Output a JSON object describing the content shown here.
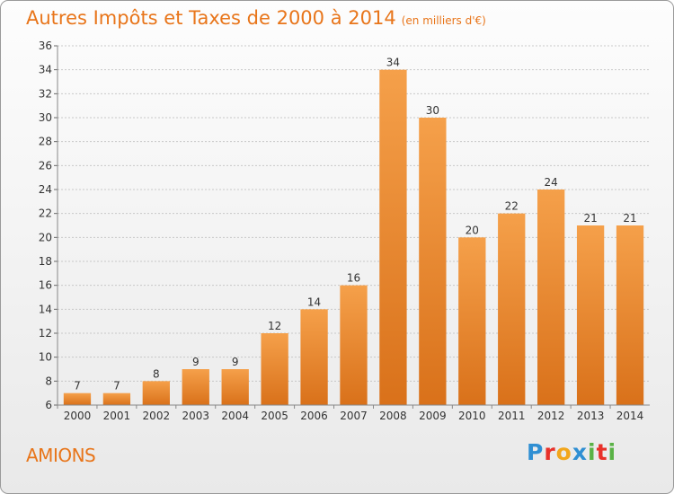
{
  "chart_data": {
    "type": "bar",
    "title": "Autres Impôts et Taxes de 2000 à 2014",
    "subtitle": "(en milliers d'€)",
    "categories": [
      "2000",
      "2001",
      "2002",
      "2003",
      "2004",
      "2005",
      "2006",
      "2007",
      "2008",
      "2009",
      "2010",
      "2011",
      "2012",
      "2013",
      "2014"
    ],
    "values": [
      7,
      7,
      8,
      9,
      9,
      12,
      14,
      16,
      34,
      30,
      20,
      22,
      24,
      21,
      21
    ],
    "ylim": [
      6,
      36
    ],
    "yticks": [
      6,
      8,
      10,
      12,
      14,
      16,
      18,
      20,
      22,
      24,
      26,
      28,
      30,
      32,
      34,
      36
    ],
    "grid": true,
    "bar_color": "#f0922f",
    "title_color": "#e8751a"
  },
  "commune": "AMIONS",
  "logo": {
    "letters": [
      {
        "ch": "P",
        "color": "#2f8fd3"
      },
      {
        "ch": "r",
        "color": "#e8312a"
      },
      {
        "ch": "o",
        "color": "#f2a61c"
      },
      {
        "ch": "x",
        "color": "#2f8fd3"
      },
      {
        "ch": "i",
        "color": "#5ab246"
      },
      {
        "ch": "t",
        "color": "#e8312a"
      },
      {
        "ch": "i",
        "color": "#5ab246"
      }
    ]
  }
}
